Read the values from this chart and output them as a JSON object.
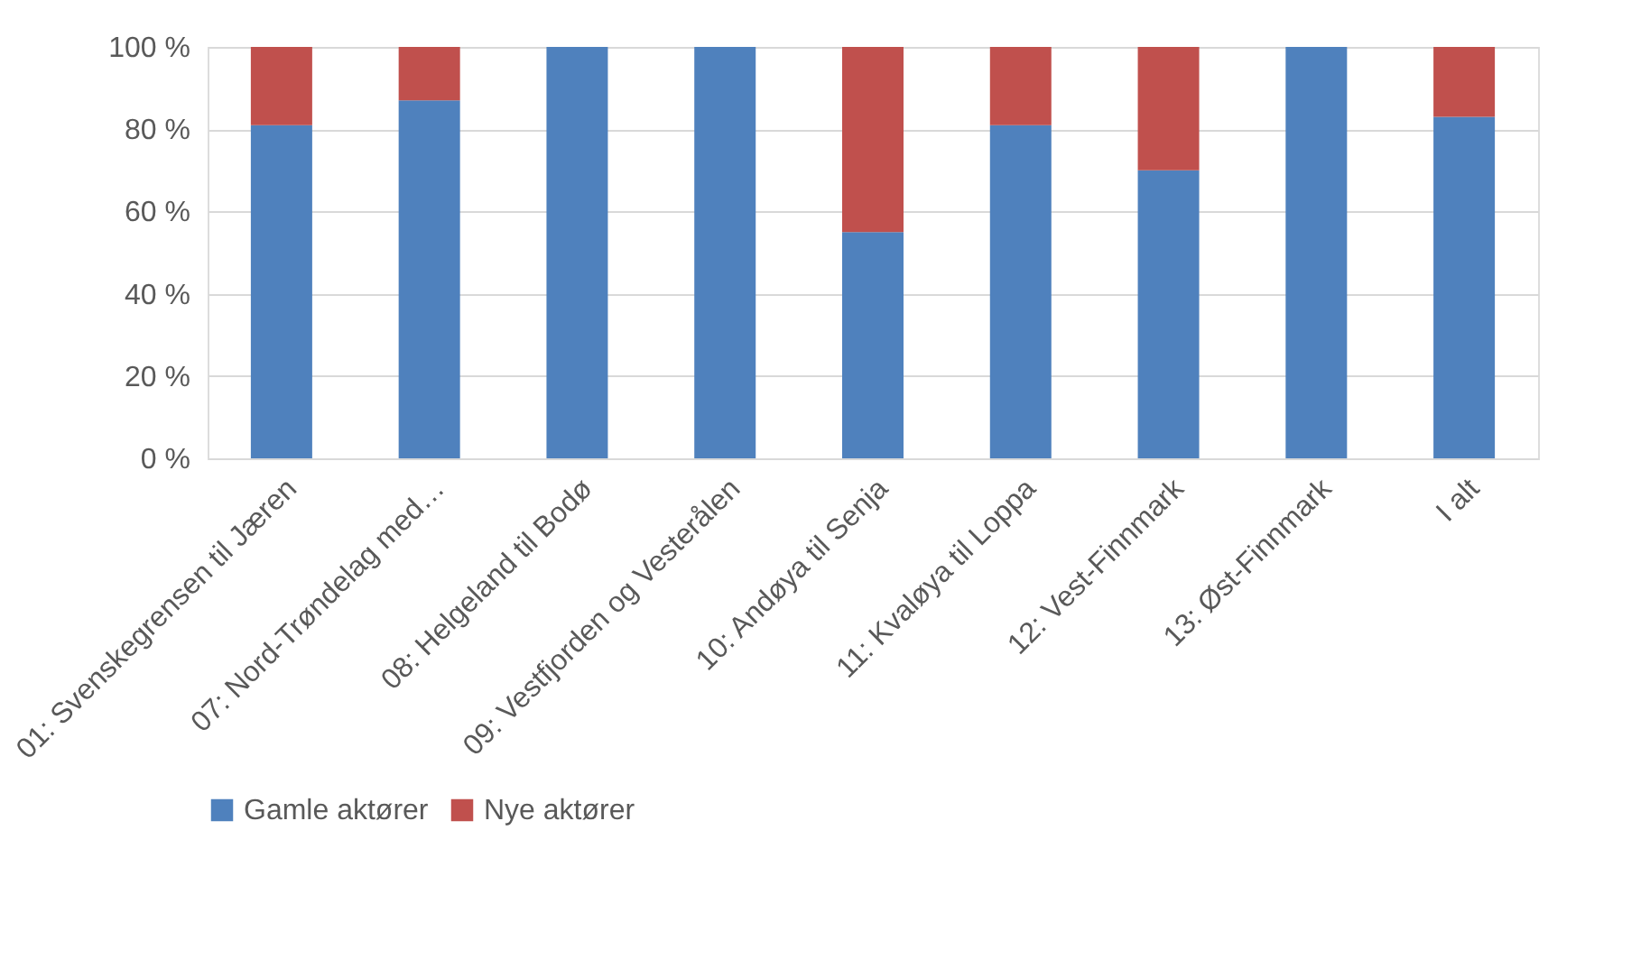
{
  "chart_data": {
    "type": "bar",
    "stacked": true,
    "categories": [
      "01: Svenskegrensen til Jæren",
      "07: Nord-Trøndelag med…",
      "08: Helgeland til Bodø",
      "09: Vestfjorden og Vesterålen",
      "10: Andøya til Senja",
      "11: Kvaløya til Loppa",
      "12: Vest-Finnmark",
      "13: Øst-Finnmark",
      "I alt"
    ],
    "series": [
      {
        "name": "Gamle aktører",
        "color": "#4f81bd",
        "values": [
          81,
          87,
          100,
          100,
          55,
          81,
          70,
          100,
          83
        ]
      },
      {
        "name": "Nye aktører",
        "color": "#c0504d",
        "values": [
          19,
          13,
          0,
          0,
          45,
          19,
          30,
          0,
          17
        ]
      }
    ],
    "ylim": [
      0,
      100
    ],
    "yticks": [
      {
        "value": 0,
        "label": "0 %"
      },
      {
        "value": 20,
        "label": "20 %"
      },
      {
        "value": 40,
        "label": "40 %"
      },
      {
        "value": 60,
        "label": "60 %"
      },
      {
        "value": 80,
        "label": "80 %"
      },
      {
        "value": 100,
        "label": "100 %"
      }
    ],
    "grid": "y",
    "legend": "bottom"
  }
}
